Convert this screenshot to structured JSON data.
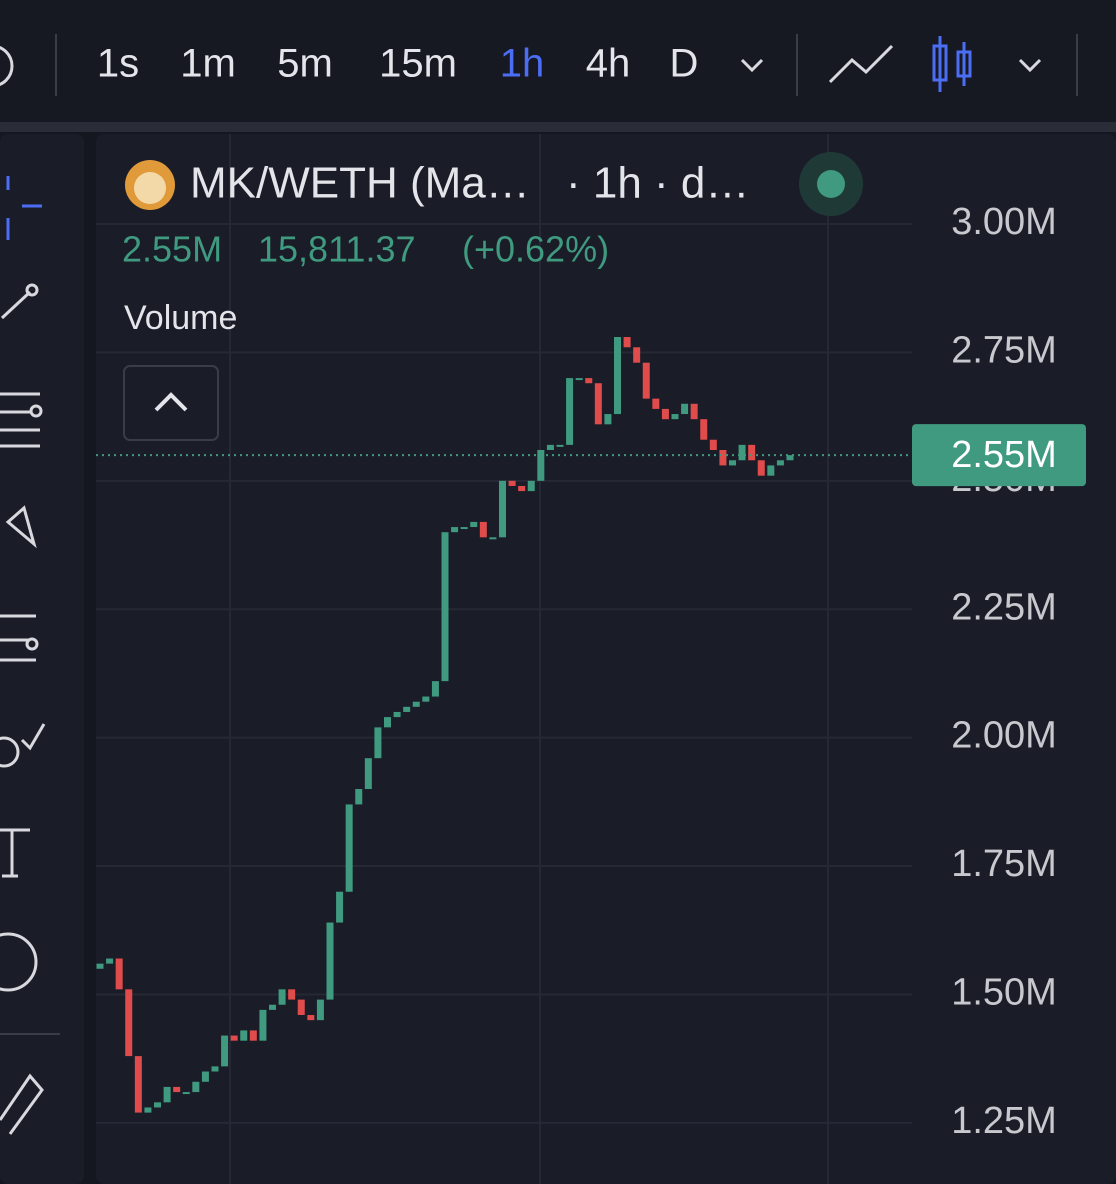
{
  "toolbar": {
    "intervals": [
      "1s",
      "1m",
      "5m",
      "15m",
      "1h",
      "4h",
      "D"
    ],
    "active": 4
  },
  "legend": {
    "symbol": "MK/WETH (Ma…",
    "meta": "· 1h · d…",
    "price": "2.55M",
    "change": "15,811.37",
    "change_pct": "(+0.62%)",
    "indicator": "Volume"
  },
  "chart_data": {
    "type": "candlestick",
    "open": [
      1550000,
      1560000,
      1570000,
      1510000,
      1380000,
      1270000,
      1280000,
      1290000,
      1320000,
      1310000,
      1310000,
      1330000,
      1350000,
      1360000,
      1420000,
      1410000,
      1430000,
      1410000,
      1470000,
      1480000,
      1510000,
      1490000,
      1460000,
      1450000,
      1490000,
      1640000,
      1700000,
      1870000,
      1900000,
      1960000,
      2020000,
      2040000,
      2050000,
      2060000,
      2070000,
      2080000,
      2110000,
      2400000,
      2410000,
      2410000,
      2420000,
      2390000,
      2390000,
      2500000,
      2490000,
      2480000,
      2500000,
      2560000,
      2570000,
      2570000,
      2700000,
      2700000,
      2690000,
      2610000,
      2630000,
      2780000,
      2760000,
      2730000,
      2660000,
      2640000,
      2620000,
      2630000,
      2650000,
      2620000,
      2580000,
      2560000,
      2530000,
      2540000,
      2570000,
      2540000,
      2510000,
      2530000,
      2540000
    ],
    "close": [
      1560000,
      1570000,
      1510000,
      1380000,
      1270000,
      1280000,
      1290000,
      1320000,
      1310000,
      1310000,
      1330000,
      1350000,
      1360000,
      1420000,
      1410000,
      1430000,
      1410000,
      1470000,
      1480000,
      1510000,
      1490000,
      1460000,
      1450000,
      1490000,
      1640000,
      1700000,
      1870000,
      1900000,
      1960000,
      2020000,
      2040000,
      2050000,
      2060000,
      2070000,
      2080000,
      2110000,
      2400000,
      2410000,
      2410000,
      2420000,
      2390000,
      2390000,
      2500000,
      2490000,
      2480000,
      2500000,
      2560000,
      2570000,
      2570000,
      2700000,
      2700000,
      2690000,
      2610000,
      2630000,
      2780000,
      2760000,
      2730000,
      2660000,
      2640000,
      2620000,
      2630000,
      2650000,
      2620000,
      2580000,
      2560000,
      2530000,
      2540000,
      2570000,
      2540000,
      2510000,
      2530000,
      2540000,
      2550000
    ],
    "up_color": "#3f9a7f",
    "down_color": "#e04b4b",
    "ylim": [
      1131000,
      3183000
    ],
    "yticks": [
      {
        "value": 1250000,
        "label": "1.25M"
      },
      {
        "value": 1500000,
        "label": "1.50M"
      },
      {
        "value": 1750000,
        "label": "1.75M"
      },
      {
        "value": 2000000,
        "label": "2.00M"
      },
      {
        "value": 2250000,
        "label": "2.25M"
      },
      {
        "value": 2500000,
        "label": "2.50M"
      },
      {
        "value": 2750000,
        "label": "2.75M"
      },
      {
        "value": 3000000,
        "label": "3.00M"
      }
    ],
    "grid": true,
    "last_price": {
      "value": 2550000,
      "label": "2.55M"
    }
  }
}
